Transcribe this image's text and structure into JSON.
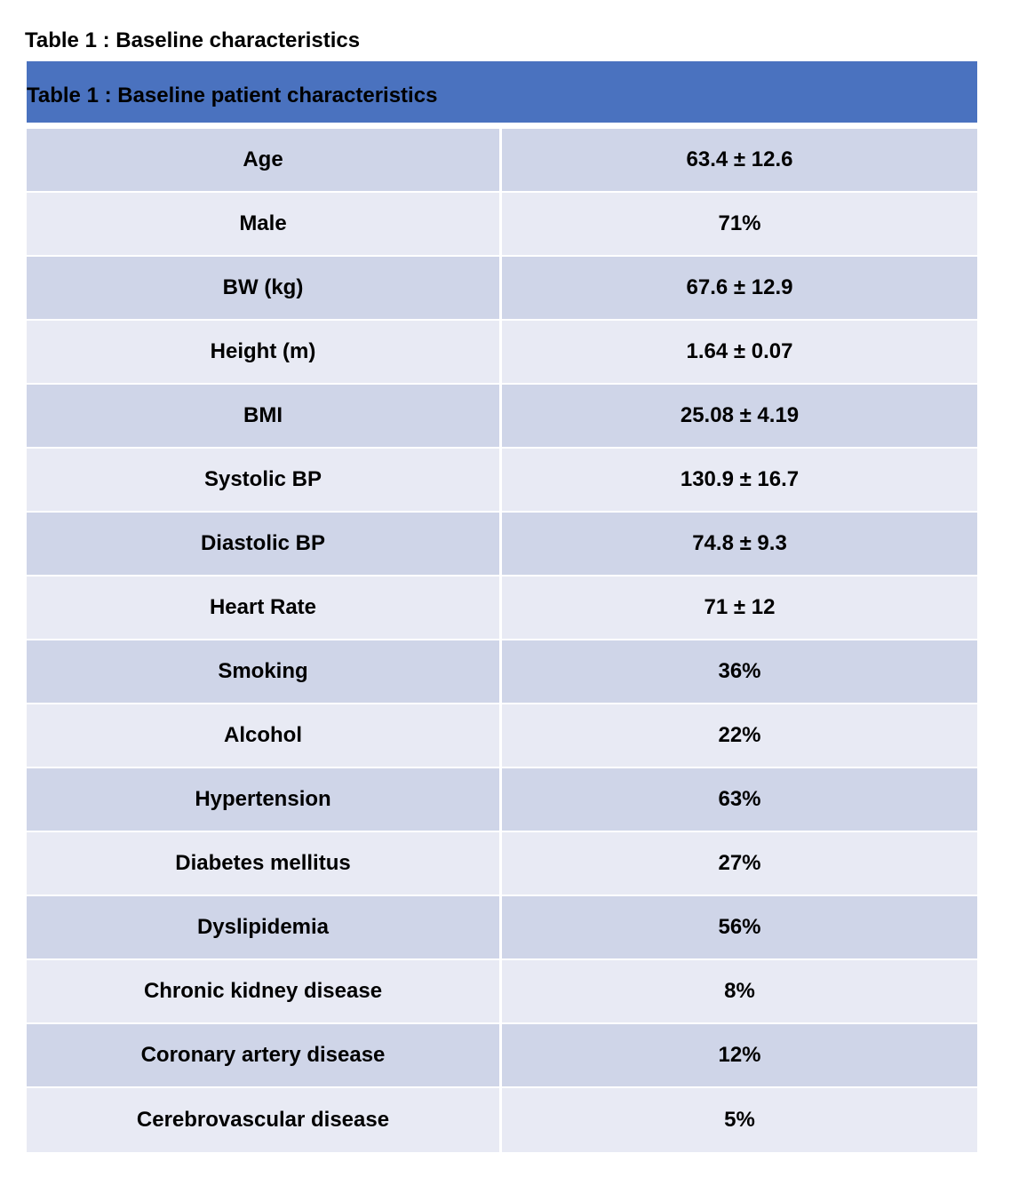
{
  "caption": "Table 1 : Baseline characteristics",
  "table": {
    "header": "Table 1 : Baseline patient characteristics",
    "header_color": "#4a72bf",
    "row_colors": [
      "#cfd5e8",
      "#e8eaf4"
    ],
    "rows": [
      {
        "label": "Age",
        "value": "63.4 ± 12.6"
      },
      {
        "label": "Male",
        "value": "71%"
      },
      {
        "label": "BW (kg)",
        "value": "67.6 ± 12.9"
      },
      {
        "label": "Height (m)",
        "value": "1.64 ± 0.07"
      },
      {
        "label": "BMI",
        "value": "25.08 ± 4.19"
      },
      {
        "label": "Systolic BP",
        "value": "130.9 ± 16.7"
      },
      {
        "label": "Diastolic BP",
        "value": "74.8 ± 9.3"
      },
      {
        "label": "Heart Rate",
        "value": "71 ± 12"
      },
      {
        "label": "Smoking",
        "value": "36%"
      },
      {
        "label": "Alcohol",
        "value": "22%"
      },
      {
        "label": "Hypertension",
        "value": "63%"
      },
      {
        "label": "Diabetes mellitus",
        "value": "27%"
      },
      {
        "label": "Dyslipidemia",
        "value": "56%"
      },
      {
        "label": "Chronic kidney disease",
        "value": "8%"
      },
      {
        "label": "Coronary artery disease",
        "value": "12%"
      },
      {
        "label": "Cerebrovascular disease",
        "value": "5%"
      }
    ]
  }
}
